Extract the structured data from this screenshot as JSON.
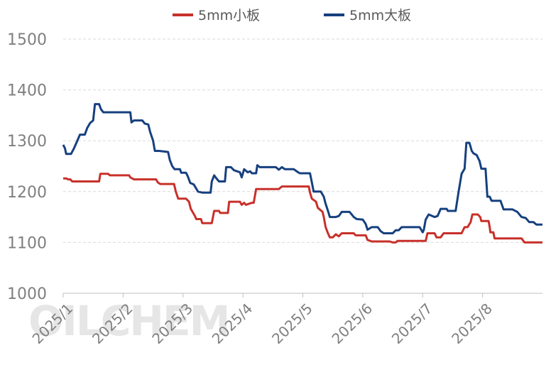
{
  "watermark": "OILCHEM",
  "chart_data": {
    "type": "line",
    "title": "",
    "xlabel": "",
    "ylabel": "",
    "ylim": [
      1000,
      1500
    ],
    "yticks": [
      1000,
      1100,
      1200,
      1300,
      1400,
      1500
    ],
    "x_ticks": [
      "2025/1",
      "2025/2",
      "2025/3",
      "2025/4",
      "2025/5",
      "2025/6",
      "2025/7",
      "2025/8"
    ],
    "xlim_month": [
      1,
      9
    ],
    "grid": "horizontal dashed",
    "legend_position": "top",
    "series": [
      {
        "name": "5mm小板",
        "color": "#c8302a",
        "points": [
          [
            1.0,
            1226
          ],
          [
            1.05,
            1226
          ],
          [
            1.08,
            1224
          ],
          [
            1.12,
            1224
          ],
          [
            1.15,
            1220
          ],
          [
            1.25,
            1220
          ],
          [
            1.4,
            1220
          ],
          [
            1.6,
            1220
          ],
          [
            1.62,
            1235
          ],
          [
            1.75,
            1235
          ],
          [
            1.78,
            1232
          ],
          [
            2.0,
            1232
          ],
          [
            2.1,
            1232
          ],
          [
            2.12,
            1228
          ],
          [
            2.18,
            1224
          ],
          [
            2.4,
            1224
          ],
          [
            2.55,
            1224
          ],
          [
            2.58,
            1218
          ],
          [
            2.62,
            1215
          ],
          [
            2.85,
            1215
          ],
          [
            2.88,
            1200
          ],
          [
            2.92,
            1186
          ],
          [
            3.05,
            1186
          ],
          [
            3.1,
            1180
          ],
          [
            3.13,
            1166
          ],
          [
            3.2,
            1152
          ],
          [
            3.22,
            1146
          ],
          [
            3.3,
            1146
          ],
          [
            3.32,
            1138
          ],
          [
            3.48,
            1138
          ],
          [
            3.52,
            1162
          ],
          [
            3.6,
            1162
          ],
          [
            3.62,
            1158
          ],
          [
            3.75,
            1158
          ],
          [
            3.77,
            1180
          ],
          [
            3.95,
            1180
          ],
          [
            3.98,
            1174
          ],
          [
            4.02,
            1178
          ],
          [
            4.05,
            1174
          ],
          [
            4.15,
            1178
          ],
          [
            4.18,
            1178
          ],
          [
            4.22,
            1205
          ],
          [
            4.6,
            1205
          ],
          [
            4.65,
            1210
          ],
          [
            5.1,
            1210
          ],
          [
            5.12,
            1198
          ],
          [
            5.15,
            1186
          ],
          [
            5.22,
            1180
          ],
          [
            5.25,
            1168
          ],
          [
            5.33,
            1160
          ],
          [
            5.35,
            1150
          ],
          [
            5.38,
            1130
          ],
          [
            5.42,
            1118
          ],
          [
            5.45,
            1110
          ],
          [
            5.5,
            1110
          ],
          [
            5.55,
            1116
          ],
          [
            5.6,
            1112
          ],
          [
            5.65,
            1118
          ],
          [
            5.85,
            1118
          ],
          [
            5.88,
            1114
          ],
          [
            6.05,
            1114
          ],
          [
            6.08,
            1105
          ],
          [
            6.15,
            1102
          ],
          [
            6.45,
            1102
          ],
          [
            6.5,
            1100
          ],
          [
            6.55,
            1100
          ],
          [
            6.58,
            1103
          ],
          [
            6.65,
            1103
          ],
          [
            7.05,
            1103
          ],
          [
            7.08,
            1118
          ],
          [
            7.2,
            1118
          ],
          [
            7.23,
            1110
          ],
          [
            7.3,
            1110
          ],
          [
            7.35,
            1118
          ],
          [
            7.65,
            1118
          ],
          [
            7.7,
            1130
          ],
          [
            7.75,
            1130
          ],
          [
            7.8,
            1140
          ],
          [
            7.83,
            1155
          ],
          [
            7.92,
            1155
          ],
          [
            7.96,
            1150
          ],
          [
            7.98,
            1142
          ],
          [
            8.1,
            1142
          ],
          [
            8.12,
            1130
          ],
          [
            8.13,
            1120
          ],
          [
            8.18,
            1120
          ],
          [
            8.2,
            1108
          ],
          [
            8.65,
            1108
          ],
          [
            8.7,
            1100
          ],
          [
            9.0,
            1100
          ]
        ]
      },
      {
        "name": "5mm大板",
        "color": "#16407f",
        "points": [
          [
            1.0,
            1292
          ],
          [
            1.03,
            1285
          ],
          [
            1.05,
            1274
          ],
          [
            1.13,
            1274
          ],
          [
            1.18,
            1285
          ],
          [
            1.22,
            1296
          ],
          [
            1.28,
            1312
          ],
          [
            1.36,
            1312
          ],
          [
            1.4,
            1325
          ],
          [
            1.45,
            1335
          ],
          [
            1.5,
            1340
          ],
          [
            1.53,
            1372
          ],
          [
            1.6,
            1372
          ],
          [
            1.63,
            1362
          ],
          [
            1.67,
            1356
          ],
          [
            1.8,
            1356
          ],
          [
            2.0,
            1356
          ],
          [
            2.12,
            1356
          ],
          [
            2.14,
            1336
          ],
          [
            2.18,
            1340
          ],
          [
            2.32,
            1340
          ],
          [
            2.36,
            1334
          ],
          [
            2.42,
            1332
          ],
          [
            2.45,
            1318
          ],
          [
            2.5,
            1300
          ],
          [
            2.53,
            1280
          ],
          [
            2.6,
            1280
          ],
          [
            2.75,
            1278
          ],
          [
            2.78,
            1262
          ],
          [
            2.82,
            1250
          ],
          [
            2.86,
            1244
          ],
          [
            2.95,
            1244
          ],
          [
            2.97,
            1237
          ],
          [
            3.05,
            1237
          ],
          [
            3.08,
            1230
          ],
          [
            3.12,
            1217
          ],
          [
            3.18,
            1214
          ],
          [
            3.22,
            1206
          ],
          [
            3.25,
            1200
          ],
          [
            3.32,
            1198
          ],
          [
            3.46,
            1198
          ],
          [
            3.48,
            1220
          ],
          [
            3.52,
            1232
          ],
          [
            3.55,
            1227
          ],
          [
            3.6,
            1220
          ],
          [
            3.7,
            1220
          ],
          [
            3.72,
            1248
          ],
          [
            3.8,
            1248
          ],
          [
            3.85,
            1242
          ],
          [
            3.9,
            1240
          ],
          [
            3.95,
            1238
          ],
          [
            3.98,
            1228
          ],
          [
            4.02,
            1244
          ],
          [
            4.08,
            1238
          ],
          [
            4.12,
            1240
          ],
          [
            4.15,
            1236
          ],
          [
            4.22,
            1236
          ],
          [
            4.24,
            1252
          ],
          [
            4.28,
            1248
          ],
          [
            4.35,
            1248
          ],
          [
            4.55,
            1248
          ],
          [
            4.6,
            1243
          ],
          [
            4.65,
            1248
          ],
          [
            4.7,
            1244
          ],
          [
            4.85,
            1244
          ],
          [
            4.92,
            1238
          ],
          [
            4.95,
            1236
          ],
          [
            5.12,
            1236
          ],
          [
            5.15,
            1218
          ],
          [
            5.18,
            1200
          ],
          [
            5.3,
            1200
          ],
          [
            5.35,
            1190
          ],
          [
            5.38,
            1176
          ],
          [
            5.42,
            1162
          ],
          [
            5.45,
            1150
          ],
          [
            5.55,
            1150
          ],
          [
            5.6,
            1152
          ],
          [
            5.65,
            1160
          ],
          [
            5.78,
            1160
          ],
          [
            5.85,
            1150
          ],
          [
            5.9,
            1146
          ],
          [
            6.0,
            1145
          ],
          [
            6.05,
            1136
          ],
          [
            6.08,
            1125
          ],
          [
            6.15,
            1130
          ],
          [
            6.25,
            1130
          ],
          [
            6.3,
            1122
          ],
          [
            6.35,
            1118
          ],
          [
            6.42,
            1118
          ],
          [
            6.5,
            1118
          ],
          [
            6.55,
            1124
          ],
          [
            6.6,
            1124
          ],
          [
            6.65,
            1130
          ],
          [
            6.95,
            1130
          ],
          [
            7.0,
            1120
          ],
          [
            7.02,
            1125
          ],
          [
            7.05,
            1145
          ],
          [
            7.1,
            1155
          ],
          [
            7.2,
            1150
          ],
          [
            7.25,
            1152
          ],
          [
            7.3,
            1166
          ],
          [
            7.4,
            1166
          ],
          [
            7.42,
            1162
          ],
          [
            7.55,
            1162
          ],
          [
            7.6,
            1200
          ],
          [
            7.65,
            1235
          ],
          [
            7.7,
            1245
          ],
          [
            7.73,
            1296
          ],
          [
            7.78,
            1296
          ],
          [
            7.82,
            1280
          ],
          [
            7.85,
            1275
          ],
          [
            7.9,
            1272
          ],
          [
            7.95,
            1260
          ],
          [
            7.98,
            1245
          ],
          [
            8.05,
            1245
          ],
          [
            8.08,
            1190
          ],
          [
            8.12,
            1190
          ],
          [
            8.15,
            1182
          ],
          [
            8.3,
            1182
          ],
          [
            8.35,
            1165
          ],
          [
            8.5,
            1165
          ],
          [
            8.58,
            1160
          ],
          [
            8.65,
            1150
          ],
          [
            8.72,
            1148
          ],
          [
            8.78,
            1140
          ],
          [
            8.85,
            1140
          ],
          [
            8.9,
            1135
          ],
          [
            9.0,
            1135
          ]
        ]
      }
    ]
  }
}
